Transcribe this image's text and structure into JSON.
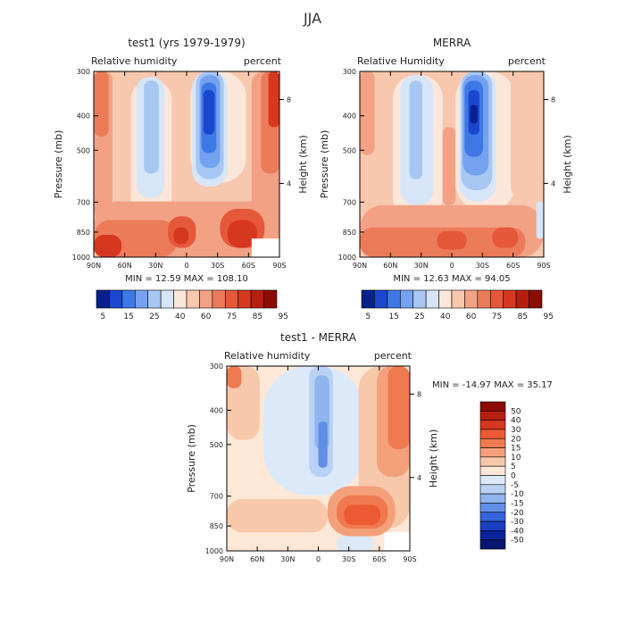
{
  "figure": {
    "main_title": "JJA",
    "stat_prefix_min": "MIN =",
    "stat_prefix_max": "MAX ="
  },
  "chart_data": [
    {
      "type": "heatmap",
      "id": "model",
      "title": "test1 (yrs 1979-1979)",
      "left_label": "Relative humidity",
      "right_label": "percent",
      "ylabel": "Pressure (mb)",
      "y2label": "Height (km)",
      "x_ticks": [
        "90N",
        "60N",
        "30N",
        "0",
        "30S",
        "60S",
        "90S"
      ],
      "x_values": [
        90,
        60,
        30,
        0,
        -30,
        -60,
        -90
      ],
      "y_ticks": [
        "300",
        "400",
        "500",
        "700",
        "850",
        "1000"
      ],
      "y_values": [
        300,
        400,
        500,
        700,
        850,
        1000
      ],
      "ylim": [
        300,
        1000
      ],
      "xlim": [
        90,
        -90
      ],
      "y2_ticks": [
        "8",
        "4"
      ],
      "min": "12.59",
      "max": "108.10",
      "colorbar": {
        "levels": [
          "5",
          "15",
          "25",
          "40",
          "60",
          "75",
          "85",
          "95"
        ],
        "colors": [
          "#08208c",
          "#1b46cf",
          "#3e78e6",
          "#74a2f0",
          "#a7c6f2",
          "#d6e6f8",
          "#fbe6da",
          "#f7c7ae",
          "#f2a184",
          "#ec7b5a",
          "#e5593a",
          "#d6371f",
          "#b81e10",
          "#8c0c05"
        ]
      }
    },
    {
      "type": "heatmap",
      "id": "obs",
      "title": "MERRA",
      "left_label": "Relative Humidity",
      "right_label": "percent",
      "ylabel": "Pressure (mb)",
      "y2label": "Height (km)",
      "x_ticks": [
        "90N",
        "60N",
        "30N",
        "0",
        "30S",
        "60S",
        "90S"
      ],
      "x_values": [
        90,
        60,
        30,
        0,
        -30,
        -60,
        -90
      ],
      "y_ticks": [
        "300",
        "400",
        "500",
        "700",
        "850",
        "1000"
      ],
      "y_values": [
        300,
        400,
        500,
        700,
        850,
        1000
      ],
      "ylim": [
        300,
        1000
      ],
      "xlim": [
        90,
        -90
      ],
      "y2_ticks": [
        "8",
        "4"
      ],
      "min": "12.63",
      "max": "94.05",
      "colorbar": {
        "levels": [
          "5",
          "15",
          "25",
          "40",
          "60",
          "75",
          "85",
          "95"
        ],
        "colors": [
          "#08208c",
          "#1b46cf",
          "#3e78e6",
          "#74a2f0",
          "#a7c6f2",
          "#d6e6f8",
          "#fbe6da",
          "#f7c7ae",
          "#f2a184",
          "#ec7b5a",
          "#e5593a",
          "#d6371f",
          "#b81e10",
          "#8c0c05"
        ]
      }
    },
    {
      "type": "heatmap",
      "id": "diff",
      "title": "test1 - MERRA",
      "left_label": "Relative humidity",
      "right_label": "percent",
      "ylabel": "Pressure (mb)",
      "y2label": "Height (km)",
      "x_ticks": [
        "90N",
        "60N",
        "30N",
        "0",
        "30S",
        "60S",
        "90S"
      ],
      "x_values": [
        90,
        60,
        30,
        0,
        -30,
        -60,
        -90
      ],
      "y_ticks": [
        "300",
        "400",
        "500",
        "700",
        "850",
        "1000"
      ],
      "y_values": [
        300,
        400,
        500,
        700,
        850,
        1000
      ],
      "ylim": [
        300,
        1000
      ],
      "xlim": [
        90,
        -90
      ],
      "y2_ticks": [
        "8",
        "4"
      ],
      "min": "-14.97",
      "max": "35.17",
      "colorbar": {
        "levels": [
          "50",
          "40",
          "30",
          "20",
          "15",
          "10",
          "5",
          "0",
          "-5",
          "-10",
          "-15",
          "-20",
          "-30",
          "-40",
          "-50"
        ],
        "colors": [
          "#8c0c05",
          "#b81e10",
          "#d6371f",
          "#ec5a33",
          "#f07a50",
          "#f4a07a",
          "#f8c8ab",
          "#fde8d8",
          "#dbe9f8",
          "#b8d1f4",
          "#8fb4ee",
          "#5f8fe6",
          "#3463db",
          "#173fc0",
          "#0a239a",
          "#06156e"
        ]
      }
    }
  ]
}
